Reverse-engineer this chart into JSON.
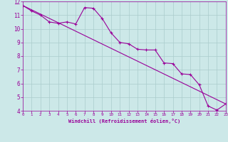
{
  "xlabel": "Windchill (Refroidissement éolien,°C)",
  "xlim": [
    0,
    23
  ],
  "ylim": [
    4,
    12
  ],
  "xticks": [
    0,
    1,
    2,
    3,
    4,
    5,
    6,
    7,
    8,
    9,
    10,
    11,
    12,
    13,
    14,
    15,
    16,
    17,
    18,
    19,
    20,
    21,
    22,
    23
  ],
  "yticks": [
    4,
    5,
    6,
    7,
    8,
    9,
    10,
    11,
    12
  ],
  "bg_color": "#cce8e8",
  "line_color": "#990099",
  "grid_color": "#aacccc",
  "line1_x": [
    0,
    1,
    2,
    3,
    4,
    5,
    6,
    7,
    8,
    9,
    10,
    11,
    12,
    13,
    14,
    15,
    16,
    17,
    18,
    19,
    20,
    21,
    22,
    23
  ],
  "line1_y": [
    11.7,
    11.3,
    11.0,
    10.5,
    10.4,
    10.5,
    10.35,
    11.55,
    11.5,
    10.75,
    9.7,
    9.0,
    8.9,
    8.5,
    8.45,
    8.45,
    7.5,
    7.45,
    6.7,
    6.65,
    5.9,
    4.35,
    4.05,
    4.5
  ],
  "line2_x": [
    0,
    23
  ],
  "line2_y": [
    11.7,
    4.5
  ]
}
